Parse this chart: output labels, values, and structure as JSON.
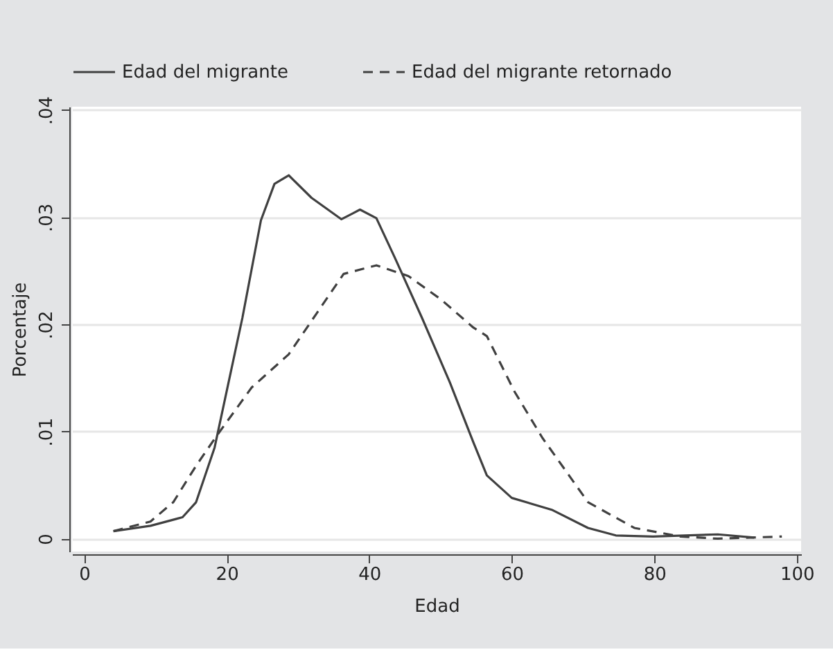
{
  "chart_data": {
    "type": "line",
    "xlabel": "Edad",
    "ylabel": "Porcentaje",
    "xlim": [
      -1.7,
      100.6
    ],
    "xticks": [
      0,
      20,
      40,
      60,
      80,
      100
    ],
    "ylim": [
      -0.0012,
      0.0403
    ],
    "yticks": [
      {
        "value": 0,
        "label": "0"
      },
      {
        "value": 0.01,
        "label": ".01"
      },
      {
        "value": 0.02,
        "label": ".02"
      },
      {
        "value": 0.03,
        "label": ".03"
      },
      {
        "value": 0.04,
        "label": ".04"
      }
    ],
    "grid": "y",
    "legend": "top",
    "series": [
      {
        "name": "Edad del migrante",
        "color": "#404040",
        "line_style": "solid",
        "x": [
          4.1,
          9.3,
          13.8,
          15.7,
          18.3,
          22.2,
          24.8,
          26.7,
          28.7,
          31.9,
          36.1,
          38.7,
          41,
          43.6,
          47.4,
          51.3,
          54.6,
          56.5,
          60,
          65.6,
          70.7,
          74.6,
          79.8,
          88.9,
          94
        ],
        "values": [
          0.0007,
          0.0012,
          0.002,
          0.0034,
          0.0085,
          0.0206,
          0.0297,
          0.0331,
          0.0339,
          0.0318,
          0.0298,
          0.0307,
          0.0299,
          0.0262,
          0.0206,
          0.0146,
          0.009,
          0.0059,
          0.0038,
          0.0027,
          0.001,
          0.0003,
          0.0002,
          0.0004,
          0.0001
        ]
      },
      {
        "name": "Edad del migrante retornado",
        "color": "#404040",
        "line_style": "dashed",
        "x": [
          4.1,
          9.3,
          12.5,
          15.7,
          18.6,
          23.5,
          28.7,
          32.6,
          36.4,
          41,
          45.5,
          50.1,
          54.6,
          56.5,
          60.4,
          64.3,
          70.7,
          77.2,
          83.7,
          88.9,
          97.9
        ],
        "values": [
          0.0007,
          0.0016,
          0.0034,
          0.0068,
          0.0096,
          0.0141,
          0.0172,
          0.021,
          0.0247,
          0.0255,
          0.0245,
          0.0223,
          0.0197,
          0.0189,
          0.0137,
          0.0094,
          0.0034,
          0.001,
          0.0002,
          0.0,
          0.0002
        ]
      }
    ]
  }
}
